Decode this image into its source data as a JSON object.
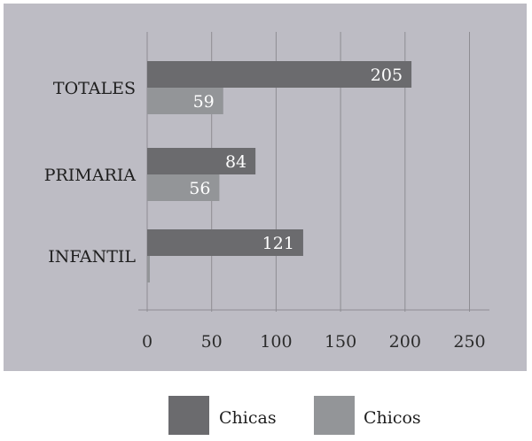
{
  "chart_data": {
    "type": "bar",
    "orientation": "horizontal",
    "title": "",
    "xlabel": "",
    "ylabel": "",
    "categories": [
      "TOTALES",
      "PRIMARIA",
      "INFANTIL"
    ],
    "series": [
      {
        "name": "Chicas",
        "values": [
          205,
          84,
          121
        ],
        "color": "#6b6b6e"
      },
      {
        "name": "Chicos",
        "values": [
          59,
          56,
          1
        ],
        "color": "#939598"
      }
    ],
    "data_labels": [
      [
        "205",
        "84",
        "121"
      ],
      [
        "59",
        "56",
        ""
      ]
    ],
    "xlim": [
      0,
      250
    ],
    "xticks": [
      0,
      50,
      100,
      150,
      200,
      250
    ],
    "grid": true,
    "legend_position": "bottom",
    "colors": {
      "plot_background": "#bdbcc4",
      "page_background": "#ffffff",
      "grid": "#8e8d93"
    }
  }
}
